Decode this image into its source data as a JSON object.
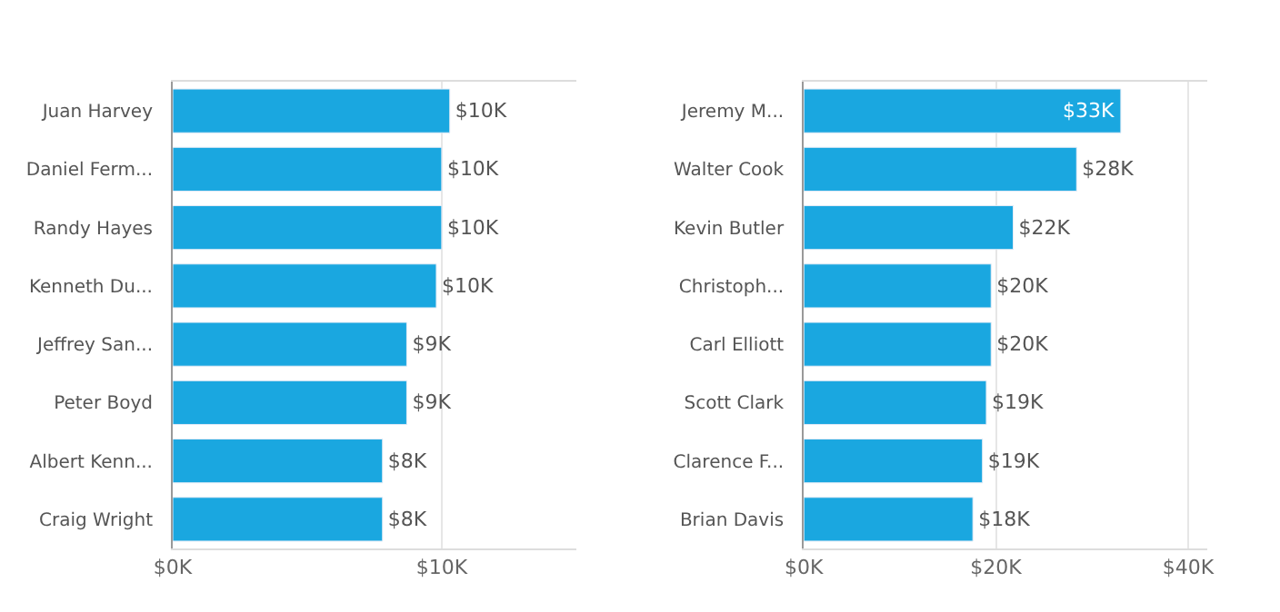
{
  "chart_data": [
    {
      "type": "bar",
      "orientation": "horizontal",
      "categories": [
        "Juan Harvey",
        "Daniel Ferm...",
        "Randy Hayes",
        "Kenneth Du...",
        "Jeffrey San...",
        "Peter Boyd",
        "Albert Kenn...",
        "Craig Wright"
      ],
      "values": [
        10.3,
        10.0,
        10.0,
        9.8,
        8.7,
        8.7,
        7.8,
        7.8
      ],
      "value_labels": [
        "$10K",
        "$10K",
        "$10K",
        "$10K",
        "$9K",
        "$9K",
        "$8K",
        "$8K"
      ],
      "color": "#1aa7e0",
      "xlim": [
        0,
        15
      ],
      "xticks": [
        {
          "value": 0,
          "label": "$0K"
        },
        {
          "value": 10,
          "label": "$10K"
        }
      ],
      "grid": "x"
    },
    {
      "type": "bar",
      "orientation": "horizontal",
      "categories": [
        "Jeremy M...",
        "Walter Cook",
        "Kevin Butler",
        "Christoph...",
        "Carl Elliott",
        "Scott Clark",
        "Clarence F...",
        "Brian Davis"
      ],
      "values": [
        33.0,
        28.4,
        21.8,
        19.5,
        19.5,
        19.0,
        18.6,
        17.6
      ],
      "value_labels": [
        "$33K",
        "$28K",
        "$22K",
        "$20K",
        "$20K",
        "$19K",
        "$19K",
        "$18K"
      ],
      "color": "#1aa7e0",
      "xlim": [
        0,
        42
      ],
      "xticks": [
        {
          "value": 0,
          "label": "$0K"
        },
        {
          "value": 20,
          "label": "$20K"
        },
        {
          "value": 40,
          "label": "$40K"
        }
      ],
      "grid": "x"
    }
  ]
}
